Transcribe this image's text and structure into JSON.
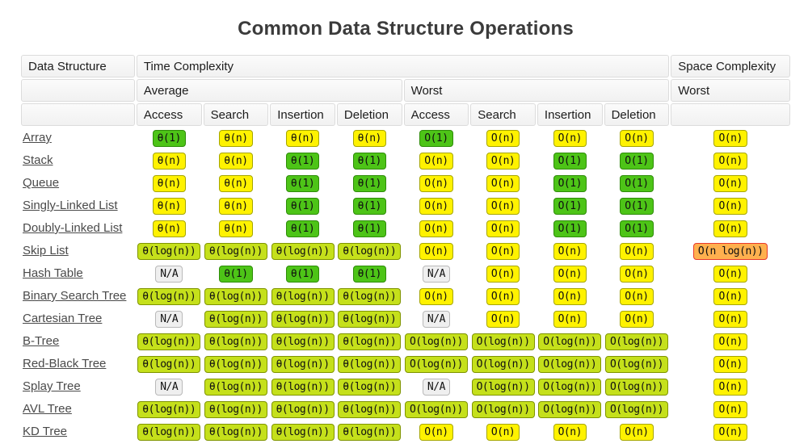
{
  "title": "Common Data Structure Operations",
  "header": {
    "data_structure": "Data Structure",
    "time_complexity": "Time Complexity",
    "space_complexity": "Space Complexity",
    "average": "Average",
    "worst": "Worst",
    "space_worst": "Worst",
    "ops": [
      "Access",
      "Search",
      "Insertion",
      "Deletion"
    ]
  },
  "colors": {
    "best": {
      "fill": "#4dc417",
      "border": "#2e8c09"
    },
    "good": {
      "fill": "#c5e01b",
      "border": "#7f9400"
    },
    "fair": {
      "fill": "#fff200",
      "border": "#a6a600"
    },
    "bad": {
      "fill": "#ffb04e",
      "border": "#e8392c"
    },
    "na": {
      "fill": "#efefef",
      "border": "#b9b9b9"
    }
  },
  "rows": [
    {
      "name": "Array",
      "average": [
        {
          "t": "θ(1)",
          "c": "best"
        },
        {
          "t": "θ(n)",
          "c": "fair"
        },
        {
          "t": "θ(n)",
          "c": "fair"
        },
        {
          "t": "θ(n)",
          "c": "fair"
        }
      ],
      "worst": [
        {
          "t": "O(1)",
          "c": "best"
        },
        {
          "t": "O(n)",
          "c": "fair"
        },
        {
          "t": "O(n)",
          "c": "fair"
        },
        {
          "t": "O(n)",
          "c": "fair"
        }
      ],
      "space": {
        "t": "O(n)",
        "c": "fair"
      }
    },
    {
      "name": "Stack",
      "average": [
        {
          "t": "θ(n)",
          "c": "fair"
        },
        {
          "t": "θ(n)",
          "c": "fair"
        },
        {
          "t": "θ(1)",
          "c": "best"
        },
        {
          "t": "θ(1)",
          "c": "best"
        }
      ],
      "worst": [
        {
          "t": "O(n)",
          "c": "fair"
        },
        {
          "t": "O(n)",
          "c": "fair"
        },
        {
          "t": "O(1)",
          "c": "best"
        },
        {
          "t": "O(1)",
          "c": "best"
        }
      ],
      "space": {
        "t": "O(n)",
        "c": "fair"
      }
    },
    {
      "name": "Queue",
      "average": [
        {
          "t": "θ(n)",
          "c": "fair"
        },
        {
          "t": "θ(n)",
          "c": "fair"
        },
        {
          "t": "θ(1)",
          "c": "best"
        },
        {
          "t": "θ(1)",
          "c": "best"
        }
      ],
      "worst": [
        {
          "t": "O(n)",
          "c": "fair"
        },
        {
          "t": "O(n)",
          "c": "fair"
        },
        {
          "t": "O(1)",
          "c": "best"
        },
        {
          "t": "O(1)",
          "c": "best"
        }
      ],
      "space": {
        "t": "O(n)",
        "c": "fair"
      }
    },
    {
      "name": "Singly-Linked List",
      "average": [
        {
          "t": "θ(n)",
          "c": "fair"
        },
        {
          "t": "θ(n)",
          "c": "fair"
        },
        {
          "t": "θ(1)",
          "c": "best"
        },
        {
          "t": "θ(1)",
          "c": "best"
        }
      ],
      "worst": [
        {
          "t": "O(n)",
          "c": "fair"
        },
        {
          "t": "O(n)",
          "c": "fair"
        },
        {
          "t": "O(1)",
          "c": "best"
        },
        {
          "t": "O(1)",
          "c": "best"
        }
      ],
      "space": {
        "t": "O(n)",
        "c": "fair"
      }
    },
    {
      "name": "Doubly-Linked List",
      "average": [
        {
          "t": "θ(n)",
          "c": "fair"
        },
        {
          "t": "θ(n)",
          "c": "fair"
        },
        {
          "t": "θ(1)",
          "c": "best"
        },
        {
          "t": "θ(1)",
          "c": "best"
        }
      ],
      "worst": [
        {
          "t": "O(n)",
          "c": "fair"
        },
        {
          "t": "O(n)",
          "c": "fair"
        },
        {
          "t": "O(1)",
          "c": "best"
        },
        {
          "t": "O(1)",
          "c": "best"
        }
      ],
      "space": {
        "t": "O(n)",
        "c": "fair"
      }
    },
    {
      "name": "Skip List",
      "average": [
        {
          "t": "θ(log(n))",
          "c": "good"
        },
        {
          "t": "θ(log(n))",
          "c": "good"
        },
        {
          "t": "θ(log(n))",
          "c": "good"
        },
        {
          "t": "θ(log(n))",
          "c": "good"
        }
      ],
      "worst": [
        {
          "t": "O(n)",
          "c": "fair"
        },
        {
          "t": "O(n)",
          "c": "fair"
        },
        {
          "t": "O(n)",
          "c": "fair"
        },
        {
          "t": "O(n)",
          "c": "fair"
        }
      ],
      "space": {
        "t": "O(n log(n))",
        "c": "bad"
      }
    },
    {
      "name": "Hash Table",
      "average": [
        {
          "t": "N/A",
          "c": "na"
        },
        {
          "t": "θ(1)",
          "c": "best"
        },
        {
          "t": "θ(1)",
          "c": "best"
        },
        {
          "t": "θ(1)",
          "c": "best"
        }
      ],
      "worst": [
        {
          "t": "N/A",
          "c": "na"
        },
        {
          "t": "O(n)",
          "c": "fair"
        },
        {
          "t": "O(n)",
          "c": "fair"
        },
        {
          "t": "O(n)",
          "c": "fair"
        }
      ],
      "space": {
        "t": "O(n)",
        "c": "fair"
      }
    },
    {
      "name": "Binary Search Tree",
      "average": [
        {
          "t": "θ(log(n))",
          "c": "good"
        },
        {
          "t": "θ(log(n))",
          "c": "good"
        },
        {
          "t": "θ(log(n))",
          "c": "good"
        },
        {
          "t": "θ(log(n))",
          "c": "good"
        }
      ],
      "worst": [
        {
          "t": "O(n)",
          "c": "fair"
        },
        {
          "t": "O(n)",
          "c": "fair"
        },
        {
          "t": "O(n)",
          "c": "fair"
        },
        {
          "t": "O(n)",
          "c": "fair"
        }
      ],
      "space": {
        "t": "O(n)",
        "c": "fair"
      }
    },
    {
      "name": "Cartesian Tree",
      "average": [
        {
          "t": "N/A",
          "c": "na"
        },
        {
          "t": "θ(log(n))",
          "c": "good"
        },
        {
          "t": "θ(log(n))",
          "c": "good"
        },
        {
          "t": "θ(log(n))",
          "c": "good"
        }
      ],
      "worst": [
        {
          "t": "N/A",
          "c": "na"
        },
        {
          "t": "O(n)",
          "c": "fair"
        },
        {
          "t": "O(n)",
          "c": "fair"
        },
        {
          "t": "O(n)",
          "c": "fair"
        }
      ],
      "space": {
        "t": "O(n)",
        "c": "fair"
      }
    },
    {
      "name": "B-Tree",
      "average": [
        {
          "t": "θ(log(n))",
          "c": "good"
        },
        {
          "t": "θ(log(n))",
          "c": "good"
        },
        {
          "t": "θ(log(n))",
          "c": "good"
        },
        {
          "t": "θ(log(n))",
          "c": "good"
        }
      ],
      "worst": [
        {
          "t": "O(log(n))",
          "c": "good"
        },
        {
          "t": "O(log(n))",
          "c": "good"
        },
        {
          "t": "O(log(n))",
          "c": "good"
        },
        {
          "t": "O(log(n))",
          "c": "good"
        }
      ],
      "space": {
        "t": "O(n)",
        "c": "fair"
      }
    },
    {
      "name": "Red-Black Tree",
      "average": [
        {
          "t": "θ(log(n))",
          "c": "good"
        },
        {
          "t": "θ(log(n))",
          "c": "good"
        },
        {
          "t": "θ(log(n))",
          "c": "good"
        },
        {
          "t": "θ(log(n))",
          "c": "good"
        }
      ],
      "worst": [
        {
          "t": "O(log(n))",
          "c": "good"
        },
        {
          "t": "O(log(n))",
          "c": "good"
        },
        {
          "t": "O(log(n))",
          "c": "good"
        },
        {
          "t": "O(log(n))",
          "c": "good"
        }
      ],
      "space": {
        "t": "O(n)",
        "c": "fair"
      }
    },
    {
      "name": "Splay Tree",
      "average": [
        {
          "t": "N/A",
          "c": "na"
        },
        {
          "t": "θ(log(n))",
          "c": "good"
        },
        {
          "t": "θ(log(n))",
          "c": "good"
        },
        {
          "t": "θ(log(n))",
          "c": "good"
        }
      ],
      "worst": [
        {
          "t": "N/A",
          "c": "na"
        },
        {
          "t": "O(log(n))",
          "c": "good"
        },
        {
          "t": "O(log(n))",
          "c": "good"
        },
        {
          "t": "O(log(n))",
          "c": "good"
        }
      ],
      "space": {
        "t": "O(n)",
        "c": "fair"
      }
    },
    {
      "name": "AVL Tree",
      "average": [
        {
          "t": "θ(log(n))",
          "c": "good"
        },
        {
          "t": "θ(log(n))",
          "c": "good"
        },
        {
          "t": "θ(log(n))",
          "c": "good"
        },
        {
          "t": "θ(log(n))",
          "c": "good"
        }
      ],
      "worst": [
        {
          "t": "O(log(n))",
          "c": "good"
        },
        {
          "t": "O(log(n))",
          "c": "good"
        },
        {
          "t": "O(log(n))",
          "c": "good"
        },
        {
          "t": "O(log(n))",
          "c": "good"
        }
      ],
      "space": {
        "t": "O(n)",
        "c": "fair"
      }
    },
    {
      "name": "KD Tree",
      "average": [
        {
          "t": "θ(log(n))",
          "c": "good"
        },
        {
          "t": "θ(log(n))",
          "c": "good"
        },
        {
          "t": "θ(log(n))",
          "c": "good"
        },
        {
          "t": "θ(log(n))",
          "c": "good"
        }
      ],
      "worst": [
        {
          "t": "O(n)",
          "c": "fair"
        },
        {
          "t": "O(n)",
          "c": "fair"
        },
        {
          "t": "O(n)",
          "c": "fair"
        },
        {
          "t": "O(n)",
          "c": "fair"
        }
      ],
      "space": {
        "t": "O(n)",
        "c": "fair"
      }
    }
  ]
}
